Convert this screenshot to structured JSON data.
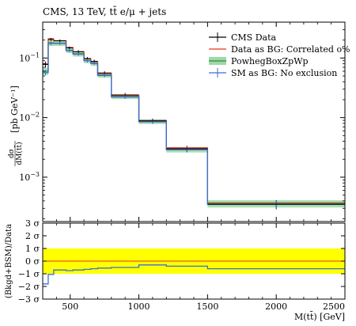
{
  "chart_data": [
    {
      "type": "line",
      "title": "CMS, 13 TeV, tt̄ e/μ + jets",
      "ylabel": "dσ/dM(tt̄) [pb GeV⁻¹]",
      "ylabel_main": "[pb GeV⁻¹]",
      "ylabel_frac_num": "dσ",
      "ylabel_frac_den": "dM(tt̄)",
      "xlabel": "M(tt̄) [GeV]",
      "yscale": "log",
      "xlim": [
        300,
        2500
      ],
      "ylim": [
        0.00018,
        0.4
      ],
      "bin_edges": [
        300,
        340,
        380,
        470,
        520,
        600,
        650,
        700,
        800,
        1000,
        1200,
        1500,
        2500
      ],
      "y_ticks": [
        {
          "value": 0.1,
          "base": "10",
          "exp": "−1"
        },
        {
          "value": 0.01,
          "base": "10",
          "exp": "−2"
        },
        {
          "value": 0.001,
          "base": "10",
          "exp": "−3"
        }
      ],
      "series": [
        {
          "name": "CMS Data",
          "style": "points",
          "color": "#000000",
          "values": [
            0.078,
            0.205,
            0.195,
            0.148,
            0.128,
            0.098,
            0.088,
            0.056,
            0.024,
            0.0088,
            0.003,
            0.00035
          ],
          "errors": [
            0.009,
            0.012,
            0.01,
            0.008,
            0.007,
            0.006,
            0.006,
            0.004,
            0.0018,
            0.0008,
            0.00035,
            6e-05
          ]
        },
        {
          "name": "Data as BG: Correlated o%",
          "style": "step",
          "color": "#e8331a",
          "values": [
            0.08,
            0.21,
            0.195,
            0.15,
            0.127,
            0.097,
            0.087,
            0.055,
            0.0235,
            0.0089,
            0.0031,
            0.00037
          ]
        },
        {
          "name": "PowhegBoxZpWp",
          "style": "band",
          "color": "#2e8b3a",
          "band_color": "#9fd9a8",
          "values": [
            0.06,
            0.18,
            0.178,
            0.135,
            0.118,
            0.091,
            0.082,
            0.052,
            0.0225,
            0.0086,
            0.0029,
            0.00036
          ],
          "band_lo": [
            0.052,
            0.16,
            0.16,
            0.122,
            0.106,
            0.082,
            0.074,
            0.047,
            0.0205,
            0.0078,
            0.0026,
            0.00031
          ],
          "band_hi": [
            0.068,
            0.2,
            0.196,
            0.148,
            0.13,
            0.1,
            0.09,
            0.057,
            0.0245,
            0.0094,
            0.0032,
            0.00041
          ]
        },
        {
          "name": "SM as BG: No exclusion",
          "style": "step",
          "color": "#3b6fd6",
          "values": [
            0.057,
            0.176,
            0.176,
            0.133,
            0.116,
            0.09,
            0.081,
            0.051,
            0.0222,
            0.0085,
            0.0029,
            0.00035
          ],
          "errors": [
            0.006,
            0.012,
            0.01,
            0.008,
            0.007,
            0.006,
            0.005,
            0.004,
            0.0016,
            0.0007,
            0.0003,
            5e-05
          ]
        }
      ],
      "legend_position": "top-right",
      "grid": false
    },
    {
      "type": "line",
      "ylabel": "(Bkgd+BSM)/Data",
      "xlabel": "M(tt̄) [GeV]",
      "xlim": [
        300,
        2500
      ],
      "ylim": [
        -3,
        3
      ],
      "x_ticks": [
        500,
        1000,
        1500,
        2000,
        2500
      ],
      "y_ticks": [
        {
          "value": 3,
          "label": "3 σ"
        },
        {
          "value": 2,
          "label": "2 σ"
        },
        {
          "value": 1,
          "label": "1 σ"
        },
        {
          "value": 0,
          "label": "0 σ"
        },
        {
          "value": -1,
          "label": "−1 σ"
        },
        {
          "value": -2,
          "label": "−2 σ"
        },
        {
          "value": -3,
          "label": "−3 σ"
        }
      ],
      "band": {
        "lo": -1,
        "hi": 1,
        "color": "#ffff00"
      },
      "reference_line": {
        "value": 0,
        "color": "#e8331a"
      },
      "series": [
        {
          "name": "SM as BG: No exclusion",
          "style": "step",
          "color": "#3b6fd6",
          "bin_edges": [
            300,
            340,
            380,
            470,
            520,
            600,
            650,
            700,
            800,
            1000,
            1200,
            1500,
            2500
          ],
          "values": [
            -1.8,
            -1.05,
            -0.7,
            -0.75,
            -0.7,
            -0.65,
            -0.6,
            -0.55,
            -0.5,
            -0.3,
            -0.4,
            -0.6
          ]
        }
      ]
    }
  ]
}
